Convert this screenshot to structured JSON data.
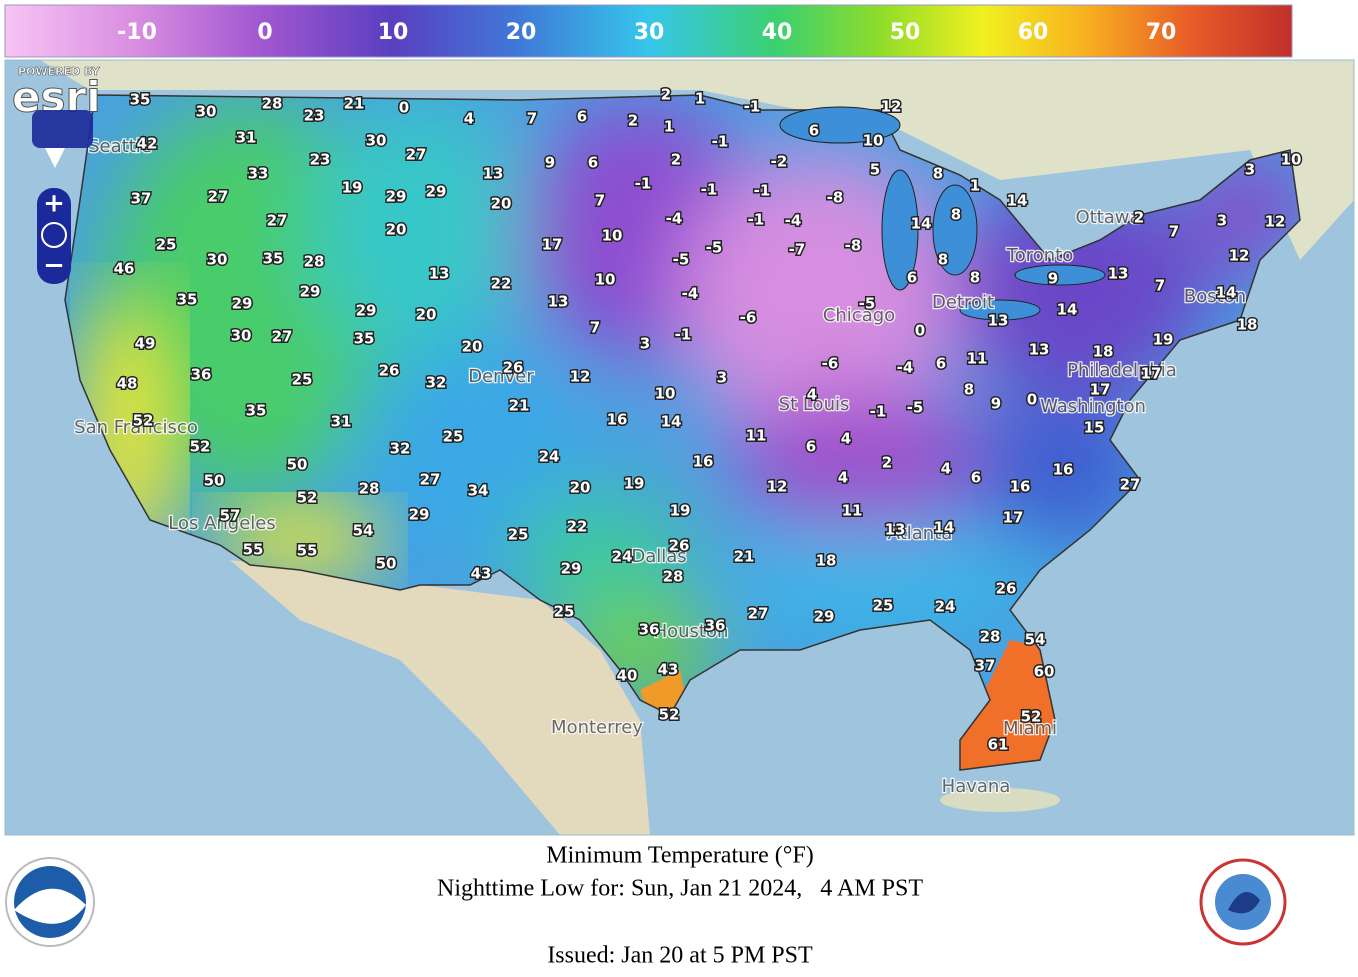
{
  "legend": {
    "ticks": [
      -10,
      0,
      10,
      20,
      30,
      40,
      50,
      60,
      70
    ]
  },
  "attribution": {
    "powered_by": "POWERED BY",
    "logo": "esri"
  },
  "map": {
    "temperatures": [
      35,
      30,
      28,
      23,
      21,
      0,
      4,
      7,
      6,
      2,
      2,
      1,
      -1,
      12,
      42,
      31,
      30,
      27,
      1,
      -1,
      6,
      10,
      33,
      23,
      9,
      6,
      2,
      -2,
      5,
      8,
      37,
      27,
      19,
      29,
      29,
      13,
      20,
      7,
      -1,
      -1,
      -1,
      -8,
      1,
      14,
      27,
      20,
      -4,
      -1,
      -4,
      14,
      8,
      3,
      10,
      25,
      30,
      35,
      28,
      17,
      10,
      -5,
      -5,
      -7,
      -8,
      8,
      2,
      7,
      3,
      12,
      12,
      46,
      13,
      22,
      10,
      -4,
      6,
      8,
      9,
      13,
      7,
      14,
      35,
      29,
      29,
      13,
      7,
      -6,
      -5,
      14,
      13,
      18,
      49,
      30,
      27,
      35,
      20,
      29,
      3,
      -1,
      0,
      48,
      36,
      25,
      26,
      32,
      20,
      26,
      12,
      3,
      -6,
      -4,
      6,
      11,
      13,
      18,
      19,
      17,
      52,
      35,
      31,
      21,
      16,
      10,
      14,
      4,
      -1,
      -5,
      8,
      9,
      0,
      17,
      15,
      52,
      32,
      25,
      11,
      6,
      4,
      50,
      24,
      16,
      2,
      4,
      6,
      16,
      27,
      50,
      28,
      27,
      34,
      20,
      19,
      12,
      4,
      16,
      52,
      29,
      19,
      11,
      13,
      14,
      17,
      57,
      54,
      22,
      25,
      26,
      21,
      55,
      55,
      50,
      24,
      28,
      29,
      43,
      18,
      25,
      27,
      29,
      25,
      24,
      26,
      36,
      36,
      28,
      54,
      40,
      43,
      37,
      60,
      52,
      52,
      61
    ],
    "cities": [
      "Seattle",
      "Ottawa",
      "Toronto",
      "Boston",
      "Detroit",
      "Chicago",
      "Philadelphia",
      "Washington",
      "St Louis",
      "Denver",
      "San Francisco",
      "Los Angeles",
      "Dallas",
      "Atlanta",
      "Houston",
      "Monterrey",
      "Miami",
      "Havana"
    ]
  },
  "caption": {
    "title": "Minimum Temperature (°F)",
    "valid": "Nighttime Low for: Sun, Jan 21 2024,   4 AM PST",
    "issued": "Issued: Jan 20 at 5 PM PST"
  }
}
